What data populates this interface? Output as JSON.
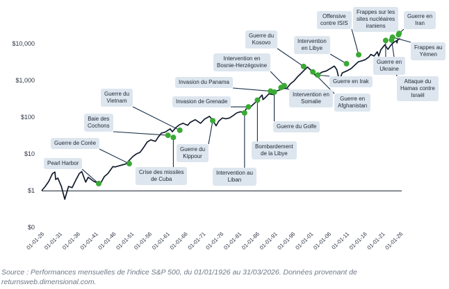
{
  "chart_data": {
    "type": "line",
    "title": "",
    "xlabel": "",
    "ylabel": "",
    "y_scale": "log",
    "y_ticks": [
      "$0",
      "$1",
      "$10",
      "$100",
      "$1,000",
      "$10,000"
    ],
    "x_ticks": [
      "01-01-26",
      "01-01-31",
      "01-01-36",
      "01-01-41",
      "01-01-46",
      "01-01-51",
      "01-01-56",
      "01-01-61",
      "01-01-66",
      "01-01-71",
      "01-01-76",
      "01-01-81",
      "01-01-86",
      "01-01-91",
      "01-01-96",
      "01-01-01",
      "01-01-06",
      "01-01-11",
      "01-01-16",
      "01-01-21",
      "01-01-26"
    ],
    "xlim": [
      1926,
      2026.25
    ],
    "series": [
      {
        "name": "Indice S&P 500",
        "points": [
          [
            1926.0,
            1.0
          ],
          [
            1927.0,
            1.3
          ],
          [
            1928.0,
            1.8
          ],
          [
            1929.0,
            2.9
          ],
          [
            1929.7,
            3.2
          ],
          [
            1929.9,
            2.0
          ],
          [
            1930.5,
            2.2
          ],
          [
            1931.5,
            1.3
          ],
          [
            1932.45,
            0.58
          ],
          [
            1933.5,
            1.3
          ],
          [
            1934.5,
            1.2
          ],
          [
            1935.5,
            1.9
          ],
          [
            1936.5,
            2.9
          ],
          [
            1937.2,
            3.3
          ],
          [
            1938.3,
            1.7
          ],
          [
            1939.0,
            2.3
          ],
          [
            1940.5,
            1.8
          ],
          [
            1941.9,
            1.55
          ],
          [
            1942.4,
            1.55
          ],
          [
            1943.5,
            2.4
          ],
          [
            1944.5,
            2.9
          ],
          [
            1945.9,
            4.5
          ],
          [
            1946.5,
            4.4
          ],
          [
            1947.5,
            4.7
          ],
          [
            1948.5,
            5.0
          ],
          [
            1949.5,
            5.3
          ],
          [
            1950.5,
            6.7
          ],
          [
            1951.5,
            8.5
          ],
          [
            1952.5,
            10
          ],
          [
            1953.5,
            11
          ],
          [
            1954.5,
            15
          ],
          [
            1955.5,
            21
          ],
          [
            1956.5,
            24
          ],
          [
            1957.8,
            22
          ],
          [
            1958.5,
            28
          ],
          [
            1959.5,
            37
          ],
          [
            1960.5,
            39
          ],
          [
            1961.9,
            48
          ],
          [
            1962.5,
            40
          ],
          [
            1963.5,
            52
          ],
          [
            1964.5,
            62
          ],
          [
            1965.5,
            68
          ],
          [
            1966.8,
            60
          ],
          [
            1967.5,
            72
          ],
          [
            1968.9,
            85
          ],
          [
            1969.5,
            78
          ],
          [
            1970.4,
            68
          ],
          [
            1971.5,
            88
          ],
          [
            1972.9,
            105
          ],
          [
            1973.9,
            80
          ],
          [
            1974.75,
            58
          ],
          [
            1975.5,
            78
          ],
          [
            1976.5,
            95
          ],
          [
            1977.5,
            90
          ],
          [
            1978.5,
            95
          ],
          [
            1979.5,
            110
          ],
          [
            1980.5,
            130
          ],
          [
            1981.5,
            140
          ],
          [
            1982.6,
            135
          ],
          [
            1983.5,
            190
          ],
          [
            1984.5,
            195
          ],
          [
            1985.5,
            240
          ],
          [
            1986.5,
            300
          ],
          [
            1987.6,
            400
          ],
          [
            1987.85,
            300
          ],
          [
            1988.5,
            340
          ],
          [
            1989.5,
            430
          ],
          [
            1990.8,
            410
          ],
          [
            1991.5,
            510
          ],
          [
            1992.5,
            550
          ],
          [
            1993.5,
            600
          ],
          [
            1994.5,
            610
          ],
          [
            1995.5,
            800
          ],
          [
            1996.5,
            960
          ],
          [
            1997.5,
            1250
          ],
          [
            1998.5,
            1550
          ],
          [
            1999.5,
            1950
          ],
          [
            2000.3,
            2300
          ],
          [
            2001.5,
            1800
          ],
          [
            2002.8,
            1250
          ],
          [
            2003.5,
            1500
          ],
          [
            2004.5,
            1700
          ],
          [
            2005.5,
            1800
          ],
          [
            2006.5,
            2050
          ],
          [
            2007.8,
            2450
          ],
          [
            2008.5,
            1950
          ],
          [
            2009.2,
            1000
          ],
          [
            2010.0,
            1600
          ],
          [
            2011.5,
            1850
          ],
          [
            2012.5,
            2100
          ],
          [
            2013.5,
            2600
          ],
          [
            2014.5,
            3200
          ],
          [
            2015.5,
            3400
          ],
          [
            2016.5,
            3700
          ],
          [
            2017.5,
            4400
          ],
          [
            2018.0,
            5100
          ],
          [
            2018.9,
            4600
          ],
          [
            2019.8,
            6000
          ],
          [
            2020.2,
            4600
          ],
          [
            2020.8,
            6800
          ],
          [
            2021.9,
            9300
          ],
          [
            2022.8,
            7000
          ],
          [
            2023.5,
            8800
          ],
          [
            2024.5,
            11000
          ],
          [
            2025.2,
            12000
          ],
          [
            2025.3,
            10500
          ],
          [
            2025.5,
            12800
          ],
          [
            2026.2,
            13700
          ]
        ]
      }
    ],
    "events": [
      {
        "label": "Pearl Harbor",
        "date": 1941.93,
        "value": 1.55
      },
      {
        "label": "Guerre de Corée",
        "date": 1950.48,
        "value": 5.4
      },
      {
        "label": "Baie des\nCochons",
        "date": 1961.3,
        "value": 32
      },
      {
        "label": "Crise des missiles\nde Cuba",
        "date": 1962.8,
        "value": 28
      },
      {
        "label": "Guerre du\nVietnam",
        "date": 1964.6,
        "value": 44
      },
      {
        "label": "Guerre du\nKippour",
        "date": 1973.8,
        "value": 80
      },
      {
        "label": "Intervention au\nLiban",
        "date": 1982.7,
        "value": 130
      },
      {
        "label": "Invasion de Grenade",
        "date": 1983.8,
        "value": 190
      },
      {
        "label": "Bombardement\nde la Libye",
        "date": 1986.3,
        "value": 290
      },
      {
        "label": "Invasion du Panama",
        "date": 1989.97,
        "value": 510
      },
      {
        "label": "Guerre du Golfe",
        "date": 1991.0,
        "value": 480
      },
      {
        "label": "Intervention en\nSomalie",
        "date": 1992.9,
        "value": 640
      },
      {
        "label": "Intervention en\nBosnie-Herzégovine",
        "date": 1993.8,
        "value": 720
      },
      {
        "label": "Guerre du\nKosovo",
        "date": 1999.2,
        "value": 2400
      },
      {
        "label": "Guerre en\nAfghanistan",
        "date": 2001.8,
        "value": 1700
      },
      {
        "label": "Guerre en Irak",
        "date": 2003.2,
        "value": 1400
      },
      {
        "label": "Intervention\nen Libye",
        "date": 2011.2,
        "value": 2850
      },
      {
        "label": "Offensive\ncontre ISIS",
        "date": 2014.6,
        "value": 5000
      },
      {
        "label": "Guerre en\nUkraine",
        "date": 2022.15,
        "value": 12200
      },
      {
        "label": "Attaque du\nHamas contre\nIsraël",
        "date": 2023.8,
        "value": 12600
      },
      {
        "label": "Frappes au\nYémen",
        "date": 2024.05,
        "value": 15000
      },
      {
        "label": "Guerre en\nIran",
        "date": 2025.9,
        "value": 19000
      },
      {
        "label": "Frappes sur les\nsites nucléaires\niraniens",
        "date": 2025.75,
        "value": 17500
      }
    ]
  },
  "caption": "Source : Performances mensuelles de l'indice S&P 500, du 01/01/1926 au 31/03/2026. Données provenant de returnsweb.dimensional.com.",
  "colors": {
    "line": "#111b2c",
    "marker": "#3aaa35",
    "label_bg": "#dde6ee",
    "connector": "#142a45",
    "axis": "#1c2533",
    "caption": "#6e7886"
  }
}
